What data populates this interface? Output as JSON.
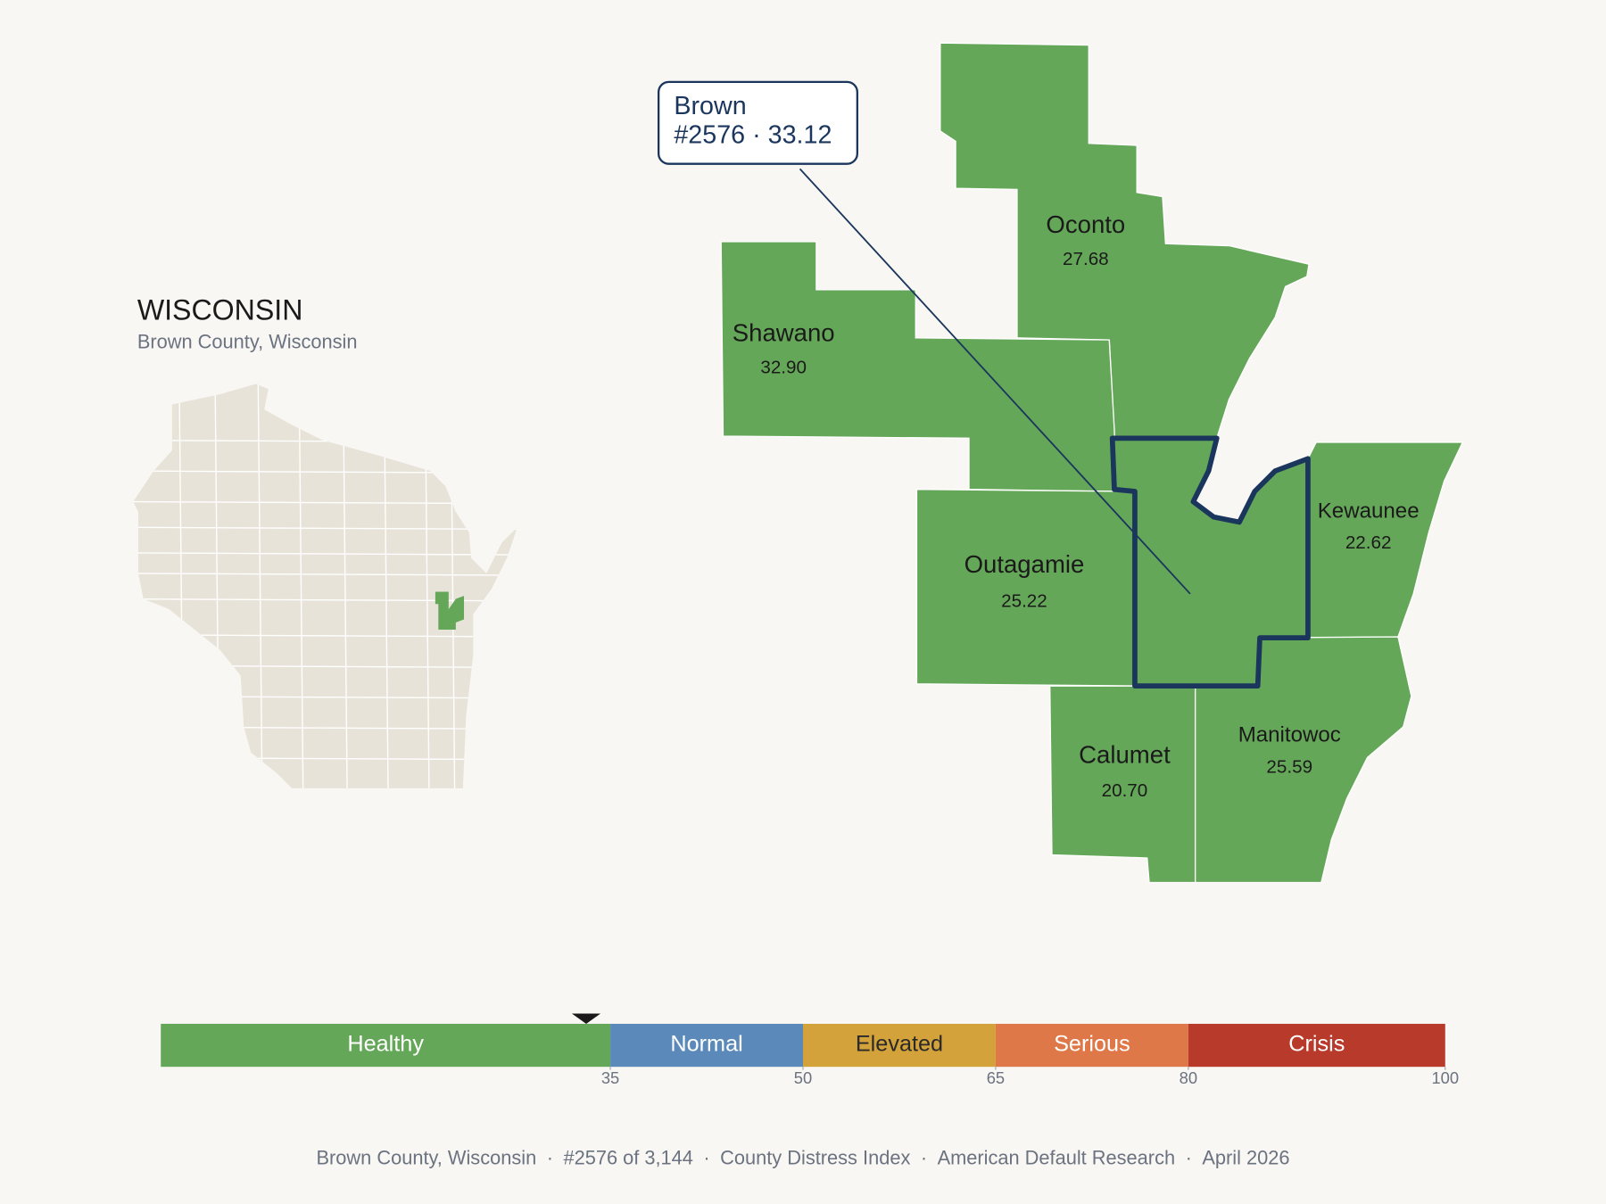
{
  "header": {
    "title": "WISCONSIN",
    "subtitle": "Brown County, Wisconsin"
  },
  "callout": {
    "name": "Brown",
    "detail": "#2576 · 33.12"
  },
  "counties": [
    {
      "name": "Oconto",
      "value": "27.68"
    },
    {
      "name": "Shawano",
      "value": "32.90"
    },
    {
      "name": "Outagamie",
      "value": "25.22"
    },
    {
      "name": "Kewaunee",
      "value": "22.62"
    },
    {
      "name": "Calumet",
      "value": "20.70"
    },
    {
      "name": "Manitowoc",
      "value": "25.59"
    }
  ],
  "scale": {
    "min": 0,
    "ticks": [
      35,
      50,
      65,
      80,
      100
    ],
    "marker": 33.12,
    "segments": [
      {
        "label": "Healthy",
        "color": "#65a758",
        "text_color": "#ffffff"
      },
      {
        "label": "Normal",
        "color": "#5b8aba",
        "text_color": "#ffffff"
      },
      {
        "label": "Elevated",
        "color": "#d4a23a",
        "text_color": "#2a2a2a"
      },
      {
        "label": "Serious",
        "color": "#de7848",
        "text_color": "#ffffff"
      },
      {
        "label": "Crisis",
        "color": "#b83a2b",
        "text_color": "#ffffff"
      }
    ]
  },
  "footer": {
    "items": [
      "Brown County, Wisconsin",
      "#2576 of 3,144",
      "County Distress Index",
      "American Default Research",
      "April 2026"
    ],
    "separator": "·"
  }
}
